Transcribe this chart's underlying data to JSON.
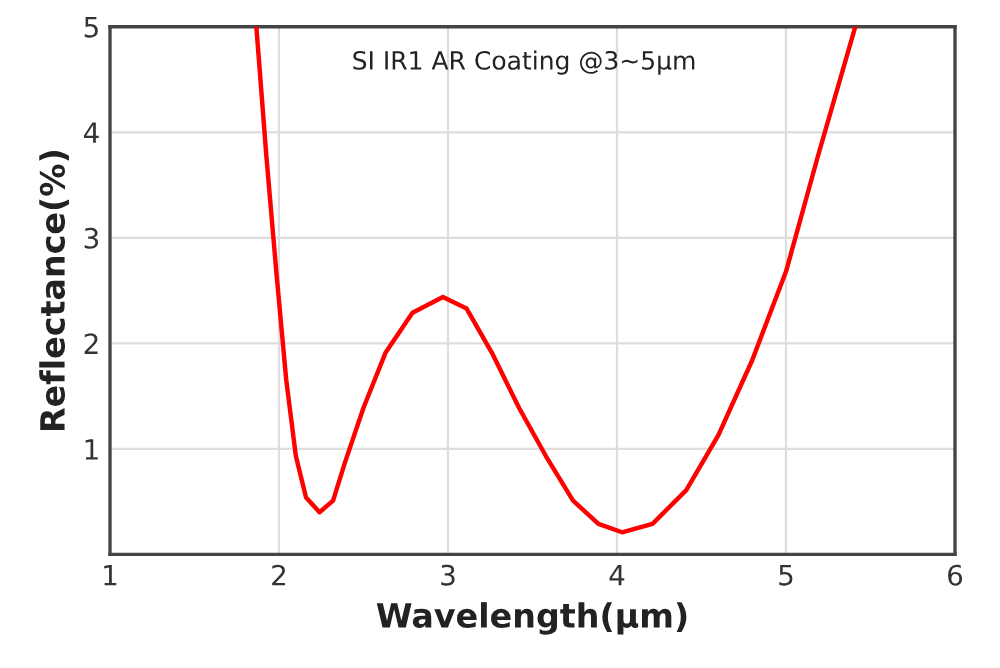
{
  "chart_data": {
    "type": "line",
    "title": "SI IR1 AR Coating @3~5μm",
    "xlabel": "Wavelength(μm)",
    "ylabel": "Reflectance(%)",
    "xlim": [
      1,
      6
    ],
    "xticks": [
      1,
      2,
      3,
      4,
      5,
      6
    ],
    "ylim": [
      0,
      5
    ],
    "yticks": [
      1,
      2,
      3,
      4,
      5
    ],
    "grid": true,
    "legend": false,
    "marker": "none",
    "line_style": "solid",
    "series": [
      {
        "color": "#ff0000",
        "x": [
          1.866,
          1.925,
          1.984,
          2.043,
          2.1,
          2.16,
          2.24,
          2.32,
          2.39,
          2.5,
          2.63,
          2.79,
          2.97,
          3.11,
          3.26,
          3.42,
          3.58,
          3.74,
          3.89,
          4.03,
          4.21,
          4.41,
          4.6,
          4.8,
          5.0,
          5.19,
          5.41
        ],
        "values": [
          5,
          3.78,
          2.68,
          1.65,
          0.93,
          0.54,
          0.4,
          0.51,
          0.87,
          1.39,
          1.91,
          2.29,
          2.44,
          2.33,
          1.91,
          1.39,
          0.93,
          0.51,
          0.29,
          0.21,
          0.29,
          0.61,
          1.13,
          1.84,
          2.68,
          3.78,
          5
        ]
      }
    ]
  }
}
